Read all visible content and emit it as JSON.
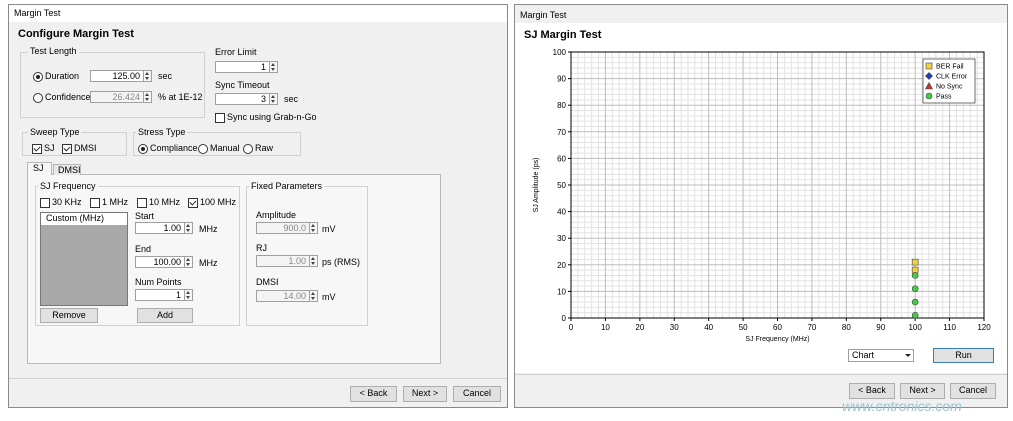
{
  "left_dialog": {
    "title_bar": "Margin Test",
    "heading": "Configure Margin Test",
    "test_length": {
      "label": "Test Length",
      "duration": {
        "label": "Duration",
        "checked": true,
        "value": "125.00",
        "unit": "sec"
      },
      "confidence": {
        "label": "Confidence",
        "checked": false,
        "value": "26.424",
        "unit": "% at 1E-12"
      }
    },
    "error_limit": {
      "label": "Error Limit",
      "value": "1"
    },
    "sync_timeout": {
      "label": "Sync Timeout",
      "value": "3",
      "unit": "sec"
    },
    "grab_n_go": {
      "label": "Sync using Grab-n-Go",
      "checked": false
    },
    "sweep_type": {
      "label": "Sweep Type",
      "options": [
        {
          "label": "SJ",
          "checked": true
        },
        {
          "label": "DMSI",
          "checked": true
        }
      ]
    },
    "stress_type": {
      "label": "Stress Type",
      "options": [
        {
          "label": "Compliance",
          "checked": true
        },
        {
          "label": "Manual",
          "checked": false
        },
        {
          "label": "Raw",
          "checked": false
        }
      ]
    },
    "tabs": [
      "SJ",
      "DMSI"
    ],
    "sj_frequency": {
      "label": "SJ Frequency",
      "options": [
        {
          "label": "30 KHz",
          "checked": false
        },
        {
          "label": "1 MHz",
          "checked": false
        },
        {
          "label": "10 MHz",
          "checked": false
        },
        {
          "label": "100 MHz",
          "checked": true
        }
      ],
      "list_header": "Custom (MHz)",
      "start": {
        "label": "Start",
        "value": "1.00",
        "unit": "MHz"
      },
      "end": {
        "label": "End",
        "value": "100.00",
        "unit": "MHz"
      },
      "num_points": {
        "label": "Num Points",
        "value": "1"
      },
      "remove": "Remove",
      "add": "Add"
    },
    "fixed_parameters": {
      "label": "Fixed Parameters",
      "amplitude": {
        "label": "Amplitude",
        "value": "900.0",
        "unit": "mV"
      },
      "rj": {
        "label": "RJ",
        "value": "1.00",
        "unit": "ps (RMS)"
      },
      "dmsi": {
        "label": "DMSI",
        "value": "14.00",
        "unit": "mV"
      }
    },
    "buttons": [
      "< Back",
      "Next >",
      "Cancel"
    ]
  },
  "right_dialog": {
    "title_bar": "Margin Test",
    "dropdown": "Chart",
    "run": "Run",
    "buttons": [
      "< Back",
      "Next >",
      "Cancel"
    ]
  },
  "chart_data": {
    "type": "scatter",
    "title": "SJ Margin Test",
    "x_label": "SJ Frequency (MHz)",
    "y_label": "SJ Amplitude (ps)",
    "xlim": [
      0,
      120
    ],
    "xticks": [
      0,
      10,
      20,
      30,
      40,
      50,
      60,
      70,
      80,
      90,
      100,
      110,
      120
    ],
    "ylim": [
      0,
      100
    ],
    "yticks": [
      0,
      10,
      20,
      30,
      40,
      50,
      60,
      70,
      80,
      90,
      100
    ],
    "grid": true,
    "legend": "top-right",
    "series": [
      {
        "name": "BER Fail",
        "color": "#f0d040",
        "marker": "square",
        "x": [
          100,
          100
        ],
        "y": [
          21,
          18
        ]
      },
      {
        "name": "CLK Error",
        "color": "#1f3fbf",
        "marker": "diamond",
        "x": [],
        "y": []
      },
      {
        "name": "No Sync",
        "color": "#c0392b",
        "marker": "triangle",
        "x": [],
        "y": []
      },
      {
        "name": "Pass",
        "color": "#3fcf3f",
        "marker": "circle",
        "x": [
          100,
          100,
          100,
          100
        ],
        "y": [
          16,
          11,
          6,
          1
        ]
      }
    ]
  },
  "watermark": "www.cntronics.com"
}
